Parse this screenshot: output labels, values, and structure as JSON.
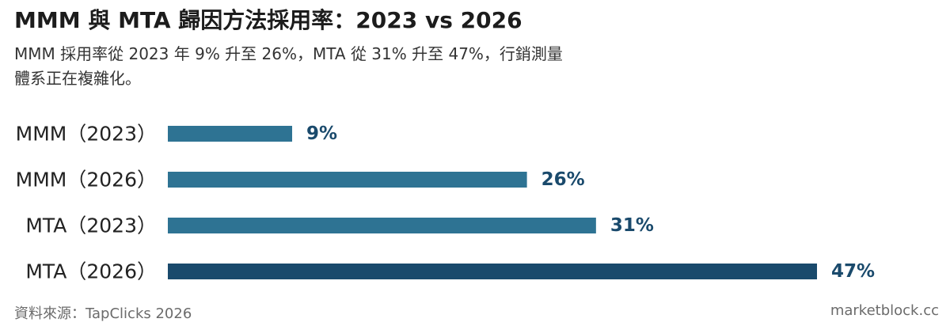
{
  "header": {
    "title": "MMM 與 MTA 歸因方法採用率：2023 vs 2026",
    "subtitle": "MMM 採用率從 2023 年 9% 升至 26%，MTA 從 31% 升至 47%，行銷測量體系正在複雜化。"
  },
  "footer": {
    "source": "資料來源：TapClicks 2026",
    "brand": "marketblock.cc"
  },
  "chart_data": {
    "type": "bar",
    "orientation": "horizontal",
    "categories": [
      "MMM（2023）",
      "MMM（2026）",
      "MTA（2023）",
      "MTA（2026）"
    ],
    "values": [
      9,
      26,
      31,
      47
    ],
    "value_labels": [
      "9%",
      "26%",
      "31%",
      "47%"
    ],
    "unit": "%",
    "xlim": [
      0,
      47
    ],
    "bar_colors": [
      "#2e7393",
      "#2e7393",
      "#2e7393",
      "#1a4a6c"
    ],
    "label_color": "#1a4a6c",
    "grid": false
  }
}
